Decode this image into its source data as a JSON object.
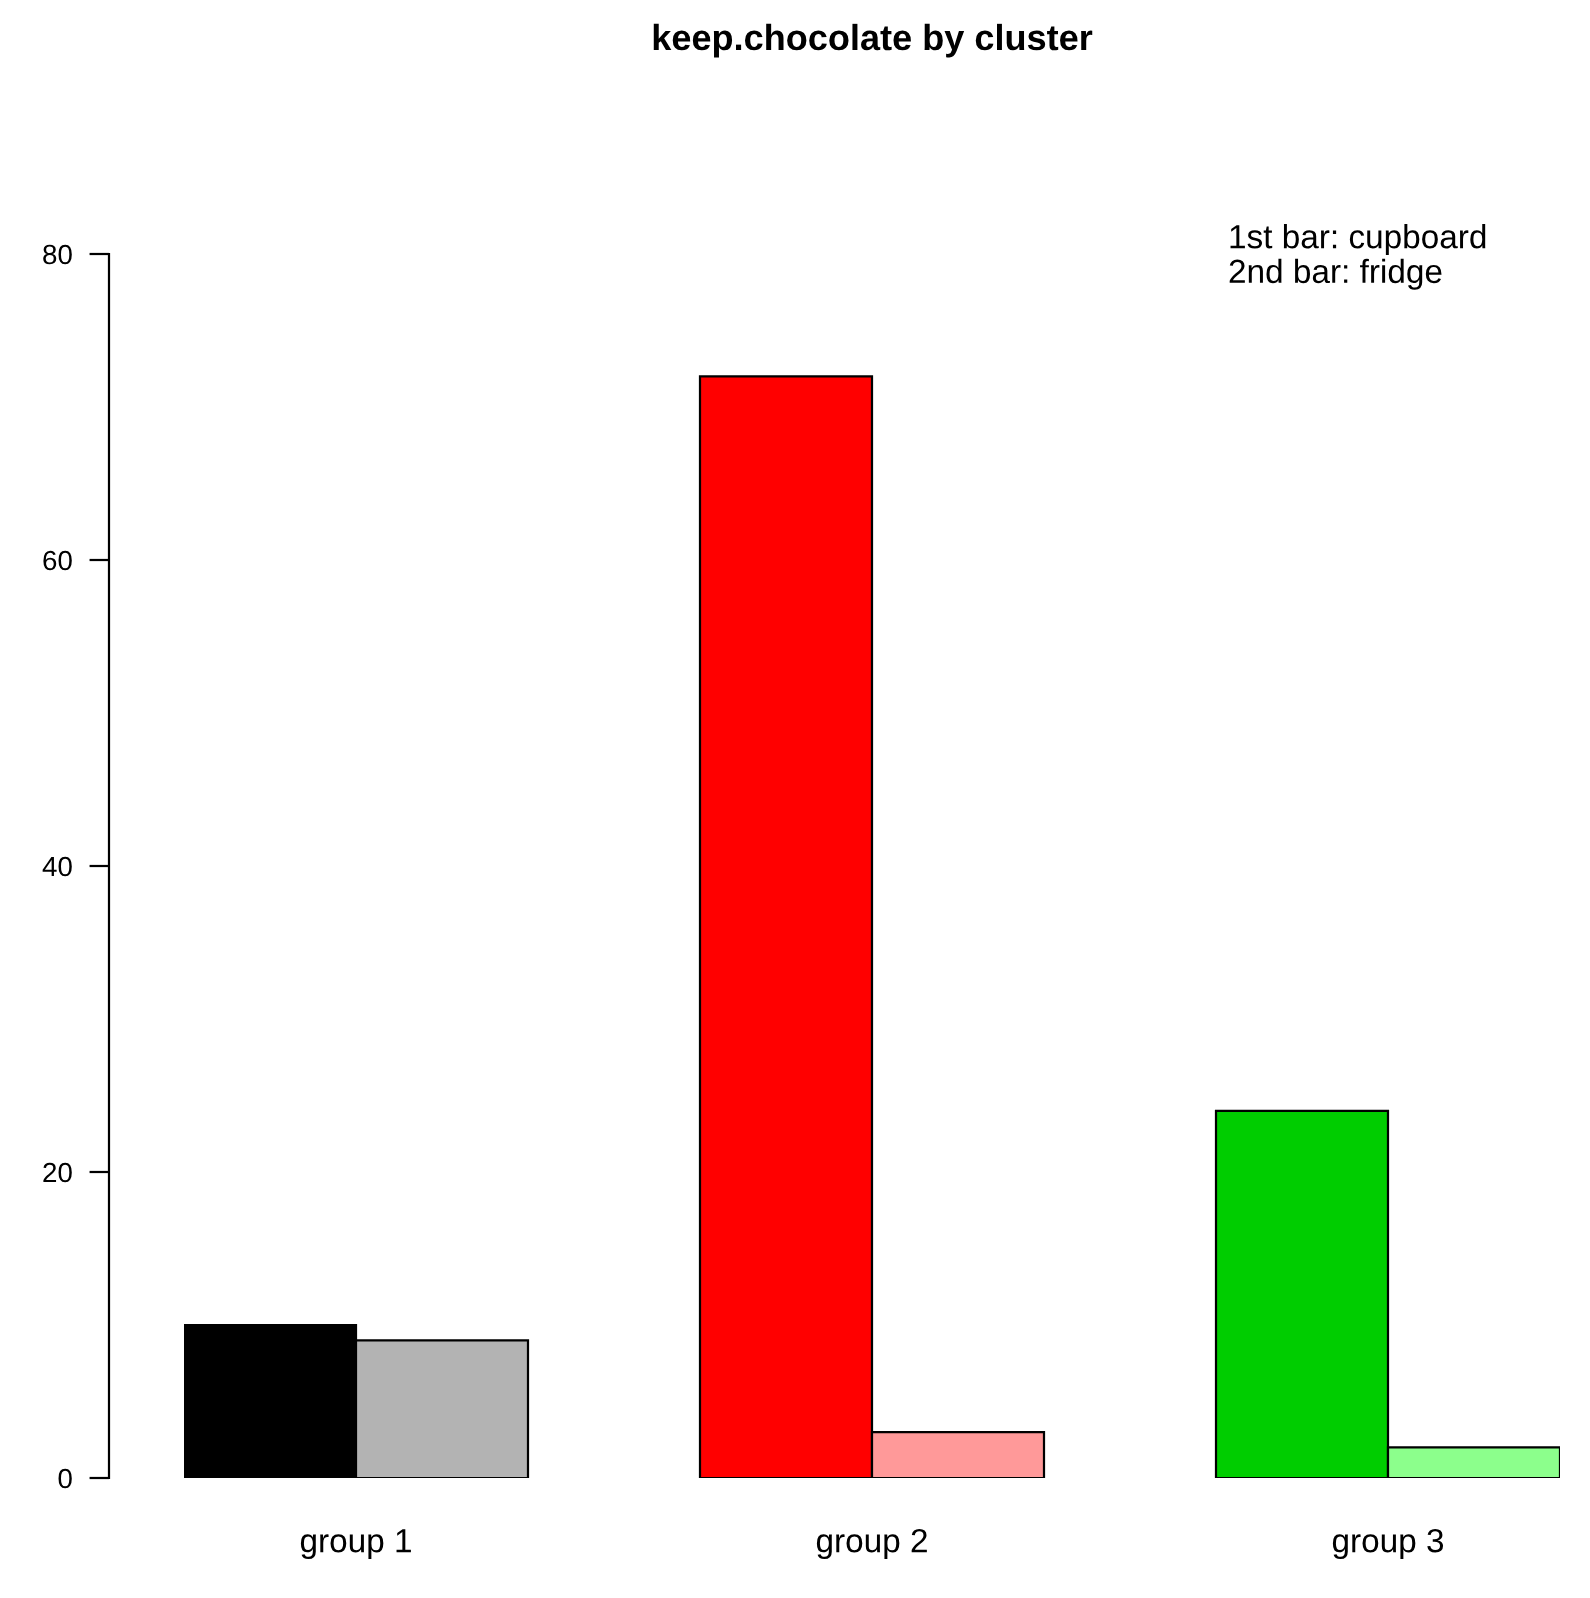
{
  "chart_data": {
    "type": "bar",
    "title": "keep.chocolate by cluster",
    "categories": [
      "group 1",
      "group 2",
      "group 3"
    ],
    "series": [
      {
        "values": [
          10,
          72,
          24
        ],
        "colors": [
          "#000000",
          "#ff0000",
          "#00cd00"
        ]
      },
      {
        "values": [
          9,
          3,
          2
        ],
        "colors": [
          "#b3b3b3",
          "#ff9999",
          "#8cff8c"
        ]
      }
    ],
    "annotations": [
      "1st bar: cupboard\n2nd bar: fridge"
    ],
    "ylim": [
      0,
      80
    ],
    "yticks": [
      0,
      20,
      40,
      60,
      80
    ],
    "grid": false
  }
}
